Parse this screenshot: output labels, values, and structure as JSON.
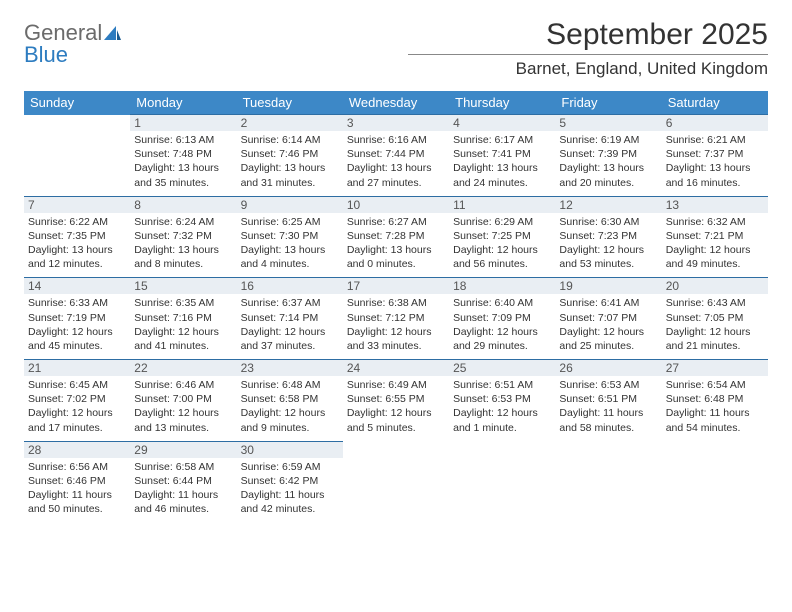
{
  "logo": {
    "part1": "General",
    "part2": "Blue"
  },
  "title": "September 2025",
  "location": "Barnet, England, United Kingdom",
  "colors": {
    "header_bg": "#3d88c7",
    "header_text": "#ffffff",
    "daynum_bg": "#e9eef3",
    "row_border": "#2d6da3",
    "body_text": "#333333",
    "logo_gray": "#6b6b6b",
    "logo_blue": "#2d7cc0"
  },
  "weekdays": [
    "Sunday",
    "Monday",
    "Tuesday",
    "Wednesday",
    "Thursday",
    "Friday",
    "Saturday"
  ],
  "weeks": [
    [
      {
        "n": "",
        "sr": "",
        "ss": "",
        "dl": ""
      },
      {
        "n": "1",
        "sr": "Sunrise: 6:13 AM",
        "ss": "Sunset: 7:48 PM",
        "dl": "Daylight: 13 hours and 35 minutes."
      },
      {
        "n": "2",
        "sr": "Sunrise: 6:14 AM",
        "ss": "Sunset: 7:46 PM",
        "dl": "Daylight: 13 hours and 31 minutes."
      },
      {
        "n": "3",
        "sr": "Sunrise: 6:16 AM",
        "ss": "Sunset: 7:44 PM",
        "dl": "Daylight: 13 hours and 27 minutes."
      },
      {
        "n": "4",
        "sr": "Sunrise: 6:17 AM",
        "ss": "Sunset: 7:41 PM",
        "dl": "Daylight: 13 hours and 24 minutes."
      },
      {
        "n": "5",
        "sr": "Sunrise: 6:19 AM",
        "ss": "Sunset: 7:39 PM",
        "dl": "Daylight: 13 hours and 20 minutes."
      },
      {
        "n": "6",
        "sr": "Sunrise: 6:21 AM",
        "ss": "Sunset: 7:37 PM",
        "dl": "Daylight: 13 hours and 16 minutes."
      }
    ],
    [
      {
        "n": "7",
        "sr": "Sunrise: 6:22 AM",
        "ss": "Sunset: 7:35 PM",
        "dl": "Daylight: 13 hours and 12 minutes."
      },
      {
        "n": "8",
        "sr": "Sunrise: 6:24 AM",
        "ss": "Sunset: 7:32 PM",
        "dl": "Daylight: 13 hours and 8 minutes."
      },
      {
        "n": "9",
        "sr": "Sunrise: 6:25 AM",
        "ss": "Sunset: 7:30 PM",
        "dl": "Daylight: 13 hours and 4 minutes."
      },
      {
        "n": "10",
        "sr": "Sunrise: 6:27 AM",
        "ss": "Sunset: 7:28 PM",
        "dl": "Daylight: 13 hours and 0 minutes."
      },
      {
        "n": "11",
        "sr": "Sunrise: 6:29 AM",
        "ss": "Sunset: 7:25 PM",
        "dl": "Daylight: 12 hours and 56 minutes."
      },
      {
        "n": "12",
        "sr": "Sunrise: 6:30 AM",
        "ss": "Sunset: 7:23 PM",
        "dl": "Daylight: 12 hours and 53 minutes."
      },
      {
        "n": "13",
        "sr": "Sunrise: 6:32 AM",
        "ss": "Sunset: 7:21 PM",
        "dl": "Daylight: 12 hours and 49 minutes."
      }
    ],
    [
      {
        "n": "14",
        "sr": "Sunrise: 6:33 AM",
        "ss": "Sunset: 7:19 PM",
        "dl": "Daylight: 12 hours and 45 minutes."
      },
      {
        "n": "15",
        "sr": "Sunrise: 6:35 AM",
        "ss": "Sunset: 7:16 PM",
        "dl": "Daylight: 12 hours and 41 minutes."
      },
      {
        "n": "16",
        "sr": "Sunrise: 6:37 AM",
        "ss": "Sunset: 7:14 PM",
        "dl": "Daylight: 12 hours and 37 minutes."
      },
      {
        "n": "17",
        "sr": "Sunrise: 6:38 AM",
        "ss": "Sunset: 7:12 PM",
        "dl": "Daylight: 12 hours and 33 minutes."
      },
      {
        "n": "18",
        "sr": "Sunrise: 6:40 AM",
        "ss": "Sunset: 7:09 PM",
        "dl": "Daylight: 12 hours and 29 minutes."
      },
      {
        "n": "19",
        "sr": "Sunrise: 6:41 AM",
        "ss": "Sunset: 7:07 PM",
        "dl": "Daylight: 12 hours and 25 minutes."
      },
      {
        "n": "20",
        "sr": "Sunrise: 6:43 AM",
        "ss": "Sunset: 7:05 PM",
        "dl": "Daylight: 12 hours and 21 minutes."
      }
    ],
    [
      {
        "n": "21",
        "sr": "Sunrise: 6:45 AM",
        "ss": "Sunset: 7:02 PM",
        "dl": "Daylight: 12 hours and 17 minutes."
      },
      {
        "n": "22",
        "sr": "Sunrise: 6:46 AM",
        "ss": "Sunset: 7:00 PM",
        "dl": "Daylight: 12 hours and 13 minutes."
      },
      {
        "n": "23",
        "sr": "Sunrise: 6:48 AM",
        "ss": "Sunset: 6:58 PM",
        "dl": "Daylight: 12 hours and 9 minutes."
      },
      {
        "n": "24",
        "sr": "Sunrise: 6:49 AM",
        "ss": "Sunset: 6:55 PM",
        "dl": "Daylight: 12 hours and 5 minutes."
      },
      {
        "n": "25",
        "sr": "Sunrise: 6:51 AM",
        "ss": "Sunset: 6:53 PM",
        "dl": "Daylight: 12 hours and 1 minute."
      },
      {
        "n": "26",
        "sr": "Sunrise: 6:53 AM",
        "ss": "Sunset: 6:51 PM",
        "dl": "Daylight: 11 hours and 58 minutes."
      },
      {
        "n": "27",
        "sr": "Sunrise: 6:54 AM",
        "ss": "Sunset: 6:48 PM",
        "dl": "Daylight: 11 hours and 54 minutes."
      }
    ],
    [
      {
        "n": "28",
        "sr": "Sunrise: 6:56 AM",
        "ss": "Sunset: 6:46 PM",
        "dl": "Daylight: 11 hours and 50 minutes."
      },
      {
        "n": "29",
        "sr": "Sunrise: 6:58 AM",
        "ss": "Sunset: 6:44 PM",
        "dl": "Daylight: 11 hours and 46 minutes."
      },
      {
        "n": "30",
        "sr": "Sunrise: 6:59 AM",
        "ss": "Sunset: 6:42 PM",
        "dl": "Daylight: 11 hours and 42 minutes."
      },
      {
        "n": "",
        "sr": "",
        "ss": "",
        "dl": ""
      },
      {
        "n": "",
        "sr": "",
        "ss": "",
        "dl": ""
      },
      {
        "n": "",
        "sr": "",
        "ss": "",
        "dl": ""
      },
      {
        "n": "",
        "sr": "",
        "ss": "",
        "dl": ""
      }
    ]
  ]
}
